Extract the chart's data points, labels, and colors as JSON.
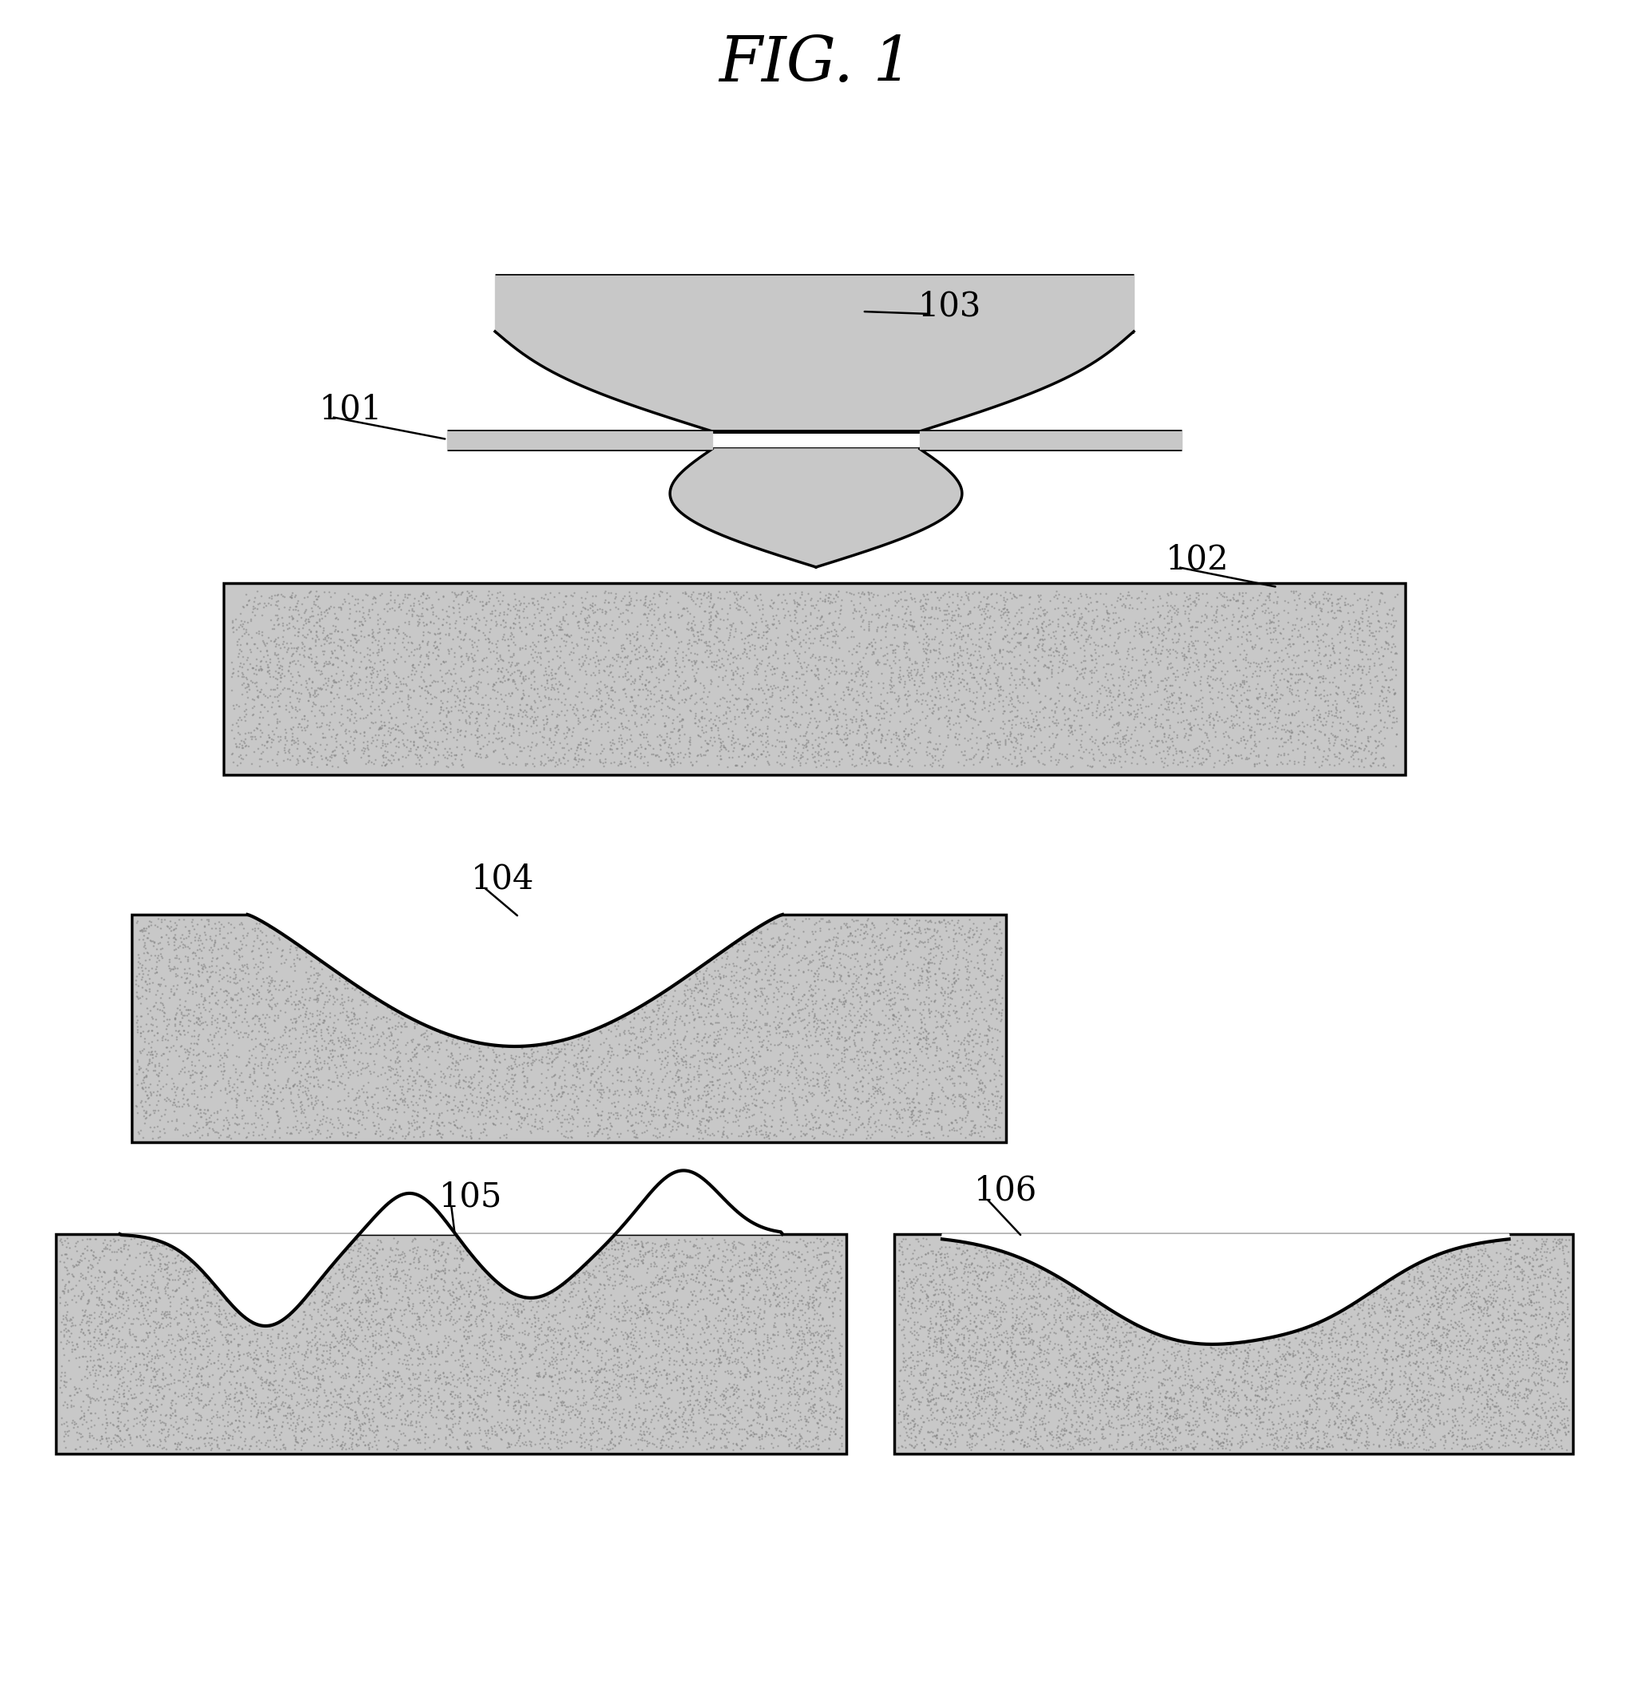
{
  "title": "FIG. 1",
  "title_fontsize": 56,
  "bg_color": "#ffffff",
  "gray": "#c8c8c8",
  "lw": 2.5,
  "label_fontsize": 30
}
